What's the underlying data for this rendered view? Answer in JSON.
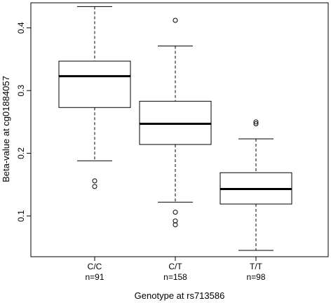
{
  "chart_data": {
    "type": "boxplot",
    "xlabel": "Genotype at rs713586",
    "ylabel": "Beta-value at cg01884057",
    "ylim": [
      0.035,
      0.44
    ],
    "yticks": [
      0.1,
      0.2,
      0.3,
      0.4
    ],
    "ytick_labels": [
      "0.1",
      "0.2",
      "0.3",
      "0.4"
    ],
    "grid": false,
    "legend": "none",
    "groups": [
      {
        "label": "C/C",
        "n_label": "n=91",
        "whisker_low": 0.188,
        "q1": 0.273,
        "median": 0.323,
        "q3": 0.347,
        "whisker_high": 0.434,
        "outliers": [
          0.156,
          0.147
        ]
      },
      {
        "label": "C/T",
        "n_label": "n=158",
        "whisker_low": 0.122,
        "q1": 0.214,
        "median": 0.247,
        "q3": 0.283,
        "whisker_high": 0.371,
        "outliers": [
          0.412,
          0.106,
          0.092,
          0.086
        ]
      },
      {
        "label": "T/T",
        "n_label": "n=98",
        "whisker_low": 0.045,
        "q1": 0.119,
        "median": 0.143,
        "q3": 0.169,
        "whisker_high": 0.223,
        "outliers": [
          0.25,
          0.247
        ]
      }
    ]
  }
}
